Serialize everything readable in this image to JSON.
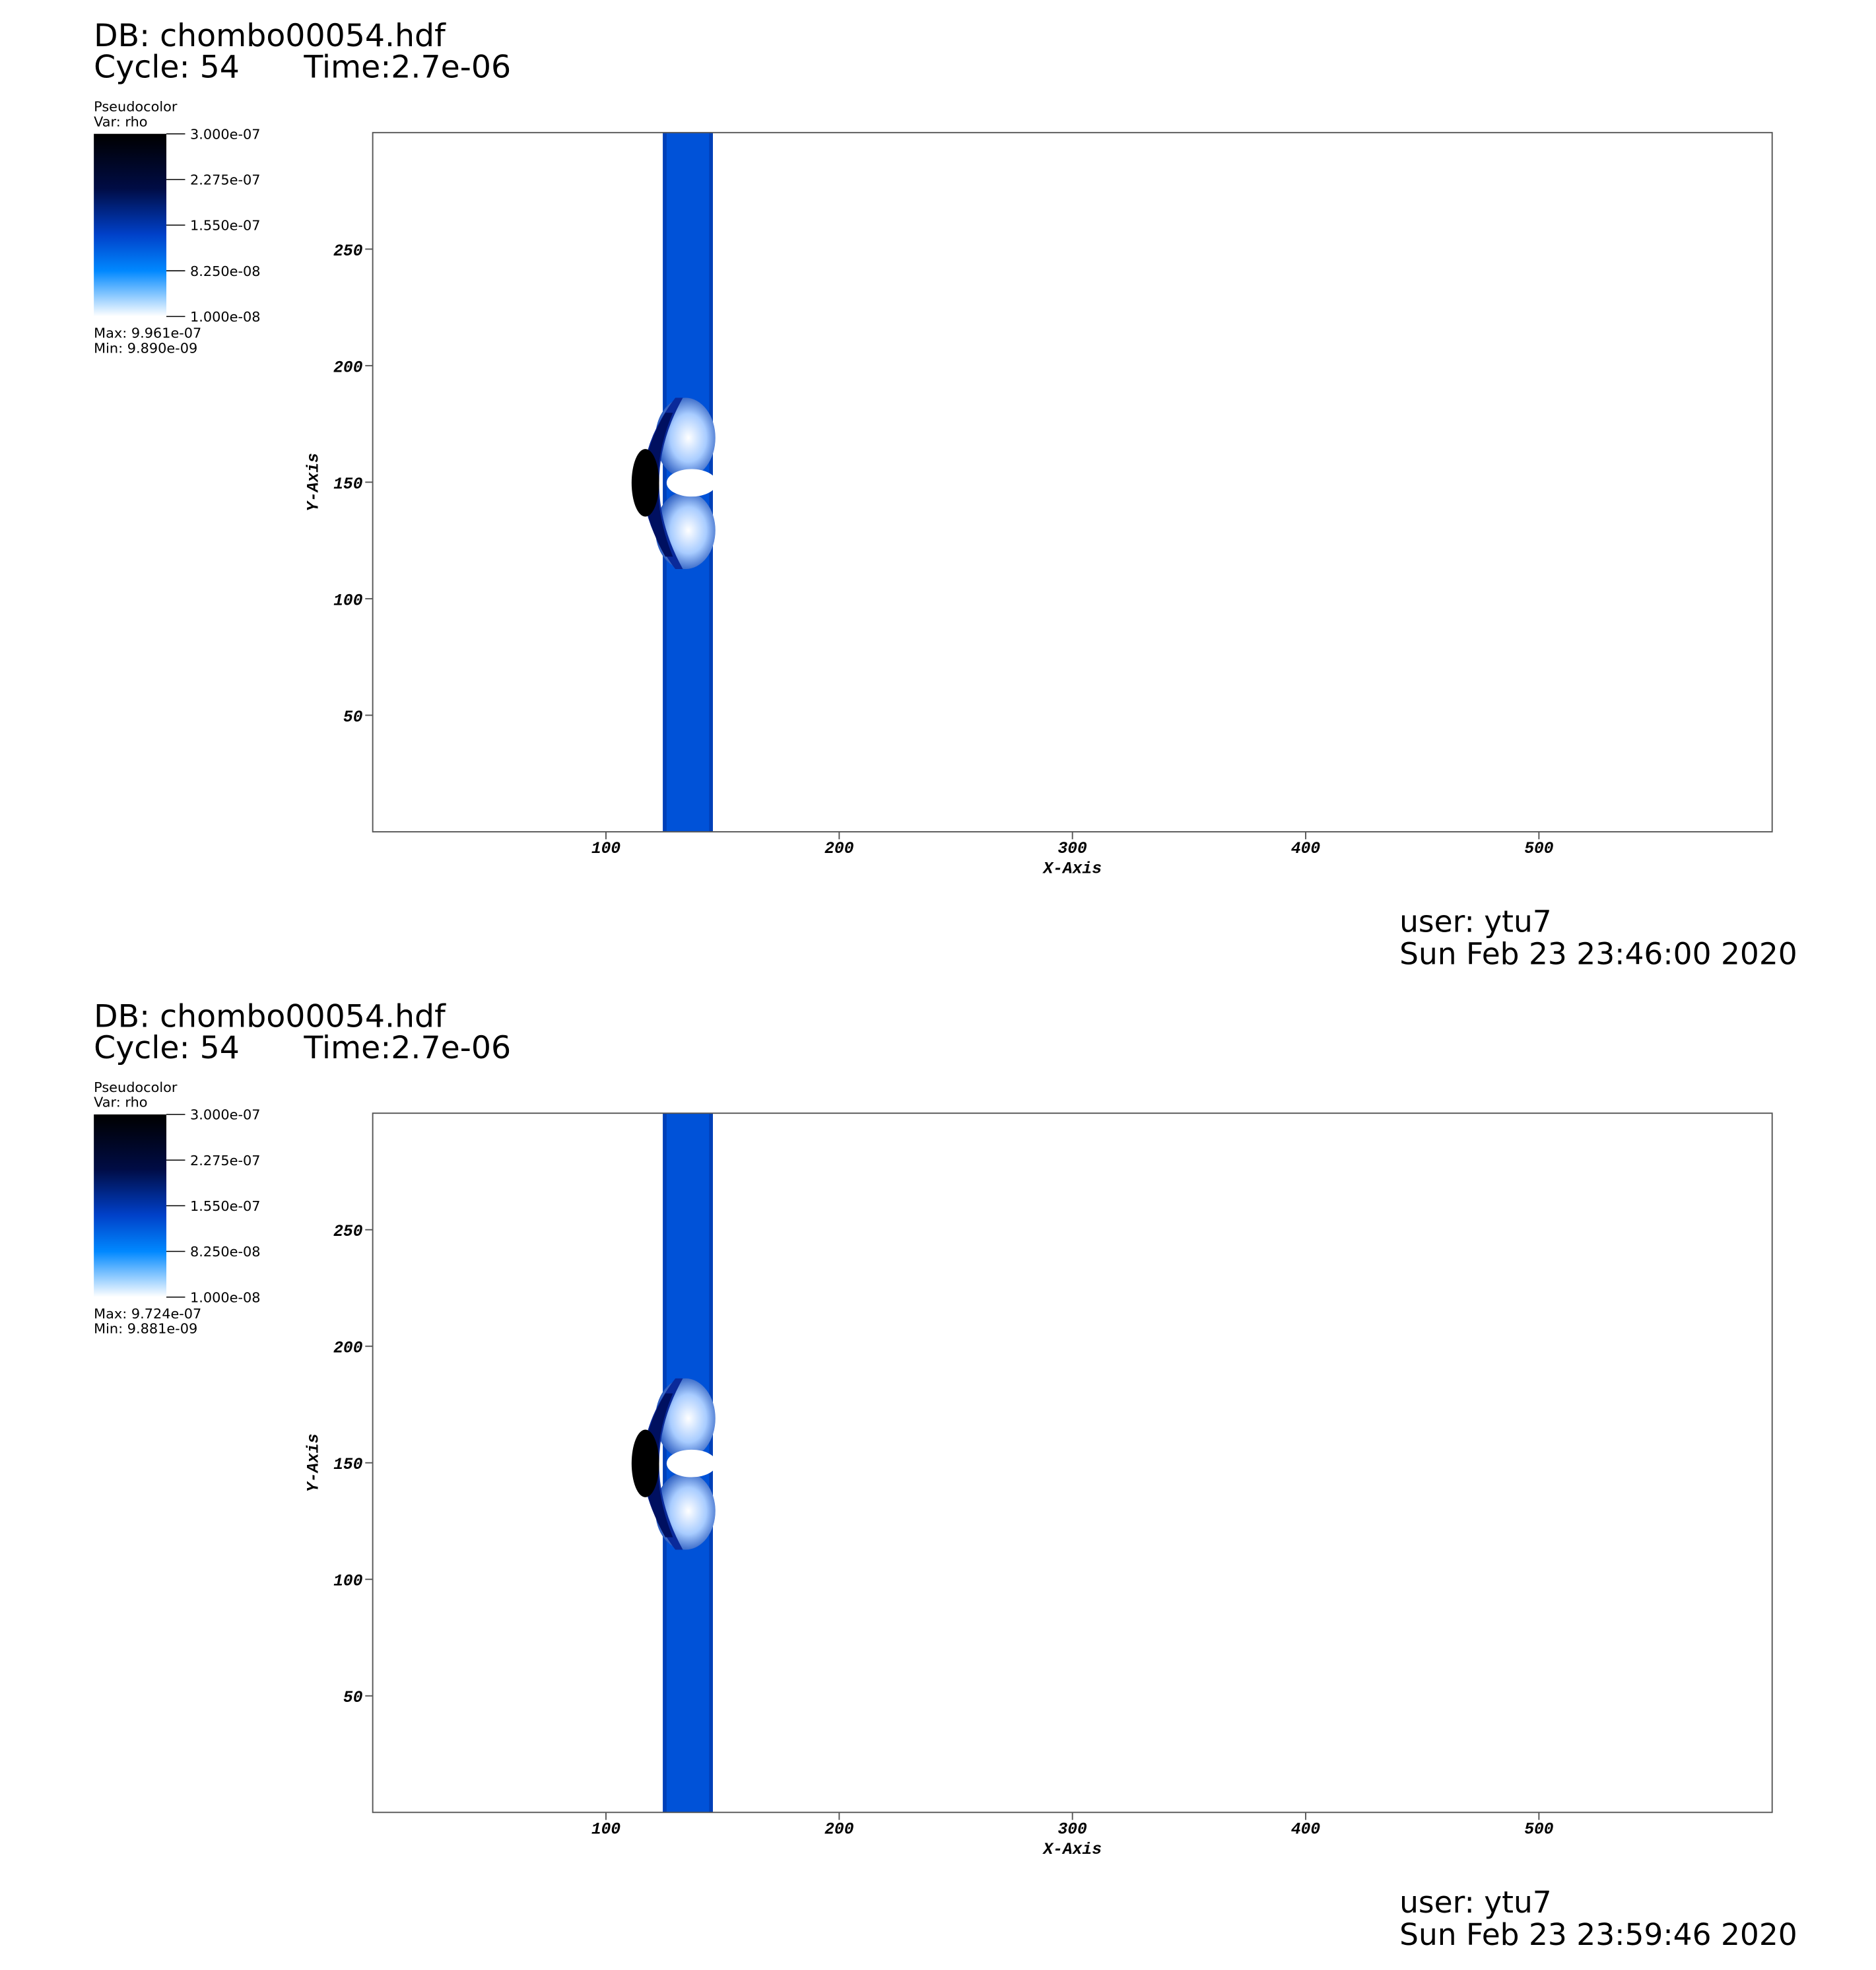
{
  "chart_data": [
    {
      "type": "pseudocolor",
      "title": "DB: chombo00054.hdf",
      "cycle": "Cycle: 54",
      "time": "Time:2.7e-06",
      "legend_title": "Pseudocolor",
      "legend_var": "Var: rho",
      "clim": [
        1e-08,
        3e-07
      ],
      "cticks": [
        {
          "value": 3e-07,
          "label": "3.000e-07"
        },
        {
          "value": 2.275e-07,
          "label": "2.275e-07"
        },
        {
          "value": 1.55e-07,
          "label": "1.550e-07"
        },
        {
          "value": 8.25e-08,
          "label": "8.250e-08"
        },
        {
          "value": 1e-08,
          "label": "1.000e-08"
        }
      ],
      "max_label": "Max:  9.961e-07",
      "min_label": "Min:  9.890e-09",
      "xlim": [
        0,
        600
      ],
      "ylim": [
        0,
        300
      ],
      "xticks": [
        100,
        200,
        300,
        400,
        500
      ],
      "yticks": [
        50,
        100,
        150,
        200,
        250
      ],
      "xlabel": "X-Axis",
      "ylabel": "Y-Axis",
      "user": "user: ytu7",
      "date": "Sun Feb 23 23:46:00 2020"
    },
    {
      "type": "pseudocolor",
      "title": "DB: chombo00054.hdf",
      "cycle": "Cycle: 54",
      "time": "Time:2.7e-06",
      "legend_title": "Pseudocolor",
      "legend_var": "Var: rho",
      "clim": [
        1e-08,
        3e-07
      ],
      "cticks": [
        {
          "value": 3e-07,
          "label": "3.000e-07"
        },
        {
          "value": 2.275e-07,
          "label": "2.275e-07"
        },
        {
          "value": 1.55e-07,
          "label": "1.550e-07"
        },
        {
          "value": 8.25e-08,
          "label": "8.250e-08"
        },
        {
          "value": 1e-08,
          "label": "1.000e-08"
        }
      ],
      "max_label": "Max:  9.724e-07",
      "min_label": "Min:  9.881e-09",
      "xlim": [
        0,
        600
      ],
      "ylim": [
        0,
        300
      ],
      "xticks": [
        100,
        200,
        300,
        400,
        500
      ],
      "yticks": [
        50,
        100,
        150,
        200,
        250
      ],
      "xlabel": "X-Axis",
      "ylabel": "Y-Axis",
      "user": "user: ytu7",
      "date": "Sun Feb 23 23:59:46 2020"
    }
  ]
}
